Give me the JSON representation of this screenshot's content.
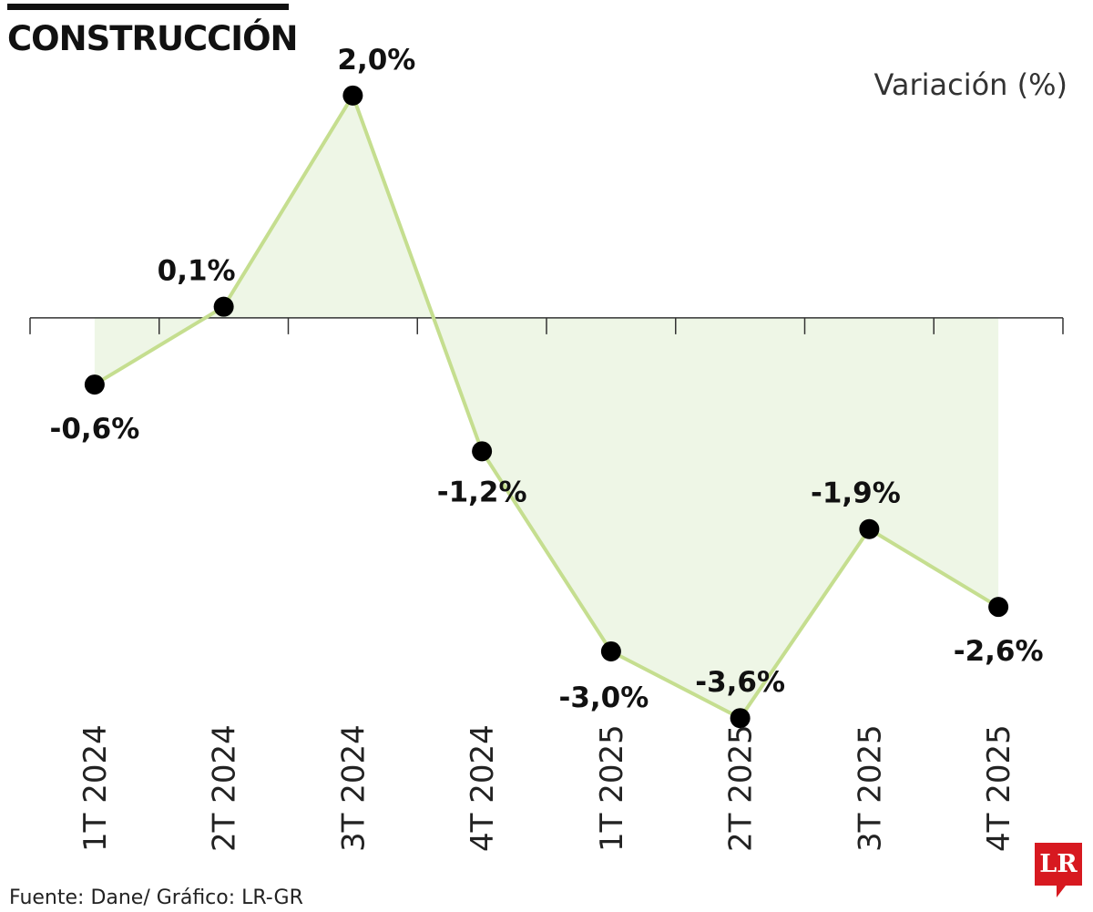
{
  "chart_data": {
    "type": "line",
    "title": "CONSTRUCCIÓN",
    "subtitle": "Variación (%)",
    "categories": [
      "1T 2024",
      "2T 2024",
      "3T 2024",
      "4T 2024",
      "1T 2025",
      "2T 2025",
      "3T 2025",
      "4T 2025"
    ],
    "values": [
      -0.6,
      0.1,
      2.0,
      -1.2,
      -3.0,
      -3.6,
      -1.9,
      -2.6
    ],
    "value_labels": [
      "-0,6%",
      "0,1%",
      "2,0%",
      "-1,2%",
      "-3,0%",
      "-3,6%",
      "-1,9%",
      "-2,6%"
    ],
    "color": "#c5de8f",
    "area_color": "#eef6e6",
    "marker_color": "#000000",
    "ylim": [
      -4,
      2.4
    ],
    "source": "Fuente: Dane/ Gráfico: LR-GR",
    "logo": "LR"
  }
}
